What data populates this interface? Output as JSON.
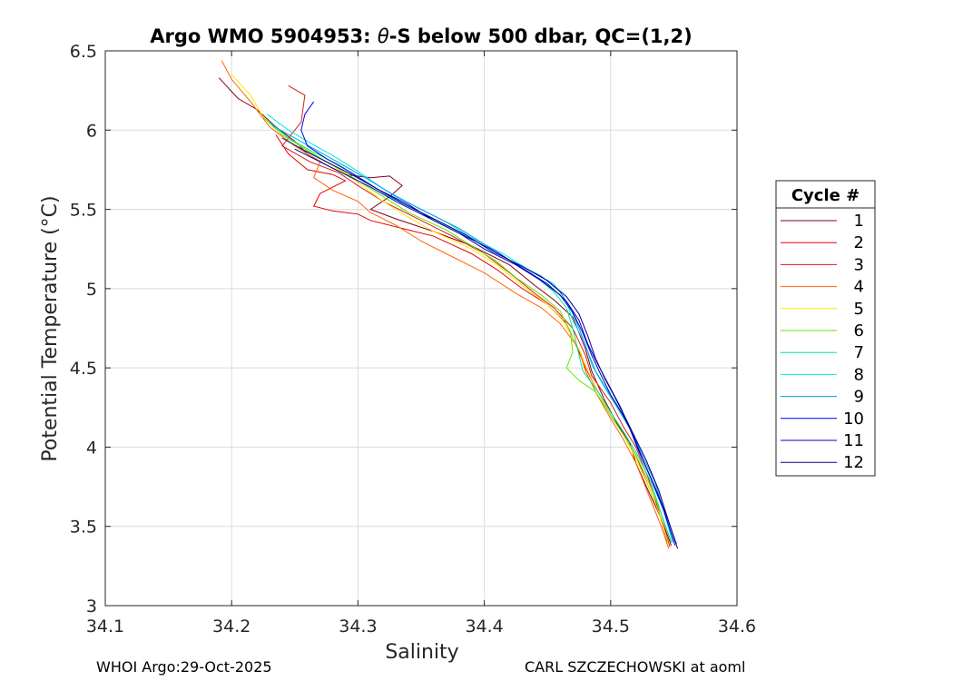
{
  "chart_data": {
    "type": "line",
    "title_prefix": "Argo WMO 5904953: ",
    "title_symbol": "θ",
    "title_suffix": "-S below 500 dbar,  QC=(1,2)",
    "xlabel": "Salinity",
    "ylabel": "Potential Temperature (°C)",
    "xlim": [
      34.1,
      34.6
    ],
    "ylim": [
      3,
      6.5
    ],
    "xticks": [
      "34.1",
      "34.2",
      "34.3",
      "34.4",
      "34.5",
      "34.6"
    ],
    "yticks": [
      "3",
      "3.5",
      "4",
      "4.5",
      "5",
      "5.5",
      "6",
      "6.5"
    ],
    "grid": true,
    "legend_title": "Cycle #",
    "legend_position": "outside-right",
    "series": [
      {
        "name": "1",
        "color": "#80001a",
        "points": [
          [
            34.19,
            6.33
          ],
          [
            34.205,
            6.2
          ],
          [
            34.22,
            6.13
          ],
          [
            34.235,
            6.02
          ],
          [
            34.25,
            5.93
          ],
          [
            34.26,
            5.85
          ],
          [
            34.275,
            5.78
          ],
          [
            34.29,
            5.72
          ],
          [
            34.31,
            5.7
          ],
          [
            34.325,
            5.71
          ],
          [
            34.335,
            5.65
          ],
          [
            34.325,
            5.58
          ],
          [
            34.31,
            5.5
          ],
          [
            34.33,
            5.44
          ],
          [
            34.36,
            5.36
          ],
          [
            34.39,
            5.27
          ],
          [
            34.42,
            5.15
          ],
          [
            34.44,
            5.02
          ],
          [
            34.455,
            4.93
          ],
          [
            34.47,
            4.82
          ],
          [
            34.48,
            4.62
          ],
          [
            34.485,
            4.48
          ],
          [
            34.495,
            4.3
          ],
          [
            34.505,
            4.15
          ],
          [
            34.515,
            4.03
          ],
          [
            34.52,
            3.9
          ],
          [
            34.53,
            3.72
          ],
          [
            34.54,
            3.55
          ],
          [
            34.548,
            3.38
          ]
        ]
      },
      {
        "name": "2",
        "color": "#e60000",
        "points": [
          [
            34.235,
            5.97
          ],
          [
            34.245,
            5.85
          ],
          [
            34.26,
            5.75
          ],
          [
            34.28,
            5.72
          ],
          [
            34.29,
            5.68
          ],
          [
            34.27,
            5.6
          ],
          [
            34.265,
            5.52
          ],
          [
            34.28,
            5.49
          ],
          [
            34.3,
            5.47
          ],
          [
            34.31,
            5.43
          ],
          [
            34.335,
            5.38
          ],
          [
            34.36,
            5.33
          ],
          [
            34.39,
            5.22
          ],
          [
            34.41,
            5.12
          ],
          [
            34.43,
            5.0
          ],
          [
            34.45,
            4.9
          ],
          [
            34.465,
            4.78
          ],
          [
            34.475,
            4.6
          ],
          [
            34.48,
            4.5
          ],
          [
            34.49,
            4.35
          ],
          [
            34.5,
            4.2
          ],
          [
            34.51,
            4.08
          ],
          [
            34.52,
            3.95
          ],
          [
            34.53,
            3.75
          ],
          [
            34.54,
            3.55
          ],
          [
            34.547,
            3.37
          ]
        ]
      },
      {
        "name": "3",
        "color": "#d21e1e",
        "points": [
          [
            34.245,
            6.28
          ],
          [
            34.258,
            6.22
          ],
          [
            34.255,
            6.05
          ],
          [
            34.24,
            5.9
          ],
          [
            34.262,
            5.8
          ],
          [
            34.285,
            5.73
          ],
          [
            34.3,
            5.65
          ],
          [
            34.32,
            5.55
          ],
          [
            34.345,
            5.45
          ],
          [
            34.375,
            5.33
          ],
          [
            34.4,
            5.22
          ],
          [
            34.42,
            5.1
          ],
          [
            34.44,
            4.97
          ],
          [
            34.455,
            4.88
          ],
          [
            34.47,
            4.75
          ],
          [
            34.48,
            4.58
          ],
          [
            34.485,
            4.45
          ],
          [
            34.5,
            4.28
          ],
          [
            34.51,
            4.13
          ],
          [
            34.52,
            4.0
          ],
          [
            34.53,
            3.8
          ],
          [
            34.538,
            3.6
          ],
          [
            34.545,
            3.4
          ]
        ]
      },
      {
        "name": "4",
        "color": "#ff6400",
        "points": [
          [
            34.192,
            6.44
          ],
          [
            34.2,
            6.32
          ],
          [
            34.215,
            6.18
          ],
          [
            34.23,
            6.02
          ],
          [
            34.25,
            5.9
          ],
          [
            34.27,
            5.8
          ],
          [
            34.265,
            5.7
          ],
          [
            34.28,
            5.62
          ],
          [
            34.3,
            5.55
          ],
          [
            34.31,
            5.48
          ],
          [
            34.33,
            5.4
          ],
          [
            34.35,
            5.3
          ],
          [
            34.37,
            5.22
          ],
          [
            34.4,
            5.1
          ],
          [
            34.425,
            4.97
          ],
          [
            34.445,
            4.88
          ],
          [
            34.46,
            4.78
          ],
          [
            34.475,
            4.62
          ],
          [
            34.48,
            4.48
          ],
          [
            34.49,
            4.32
          ],
          [
            34.5,
            4.18
          ],
          [
            34.51,
            4.05
          ],
          [
            34.52,
            3.9
          ],
          [
            34.53,
            3.7
          ],
          [
            34.54,
            3.5
          ],
          [
            34.546,
            3.36
          ]
        ]
      },
      {
        "name": "5",
        "color": "#ffe600",
        "points": [
          [
            34.2,
            6.35
          ],
          [
            34.215,
            6.22
          ],
          [
            34.225,
            6.08
          ],
          [
            34.245,
            5.95
          ],
          [
            34.265,
            5.85
          ],
          [
            34.285,
            5.75
          ],
          [
            34.3,
            5.67
          ],
          [
            34.32,
            5.55
          ],
          [
            34.34,
            5.45
          ],
          [
            34.36,
            5.36
          ],
          [
            34.39,
            5.25
          ],
          [
            34.41,
            5.15
          ],
          [
            34.43,
            5.02
          ],
          [
            34.45,
            4.9
          ],
          [
            34.462,
            4.8
          ],
          [
            34.475,
            4.62
          ],
          [
            34.482,
            4.48
          ],
          [
            34.49,
            4.35
          ],
          [
            34.5,
            4.2
          ],
          [
            34.51,
            4.08
          ],
          [
            34.52,
            3.93
          ],
          [
            34.53,
            3.75
          ],
          [
            34.54,
            3.55
          ],
          [
            34.546,
            3.38
          ]
        ]
      },
      {
        "name": "6",
        "color": "#64e600",
        "points": [
          [
            34.225,
            6.08
          ],
          [
            34.24,
            5.97
          ],
          [
            34.26,
            5.87
          ],
          [
            34.28,
            5.78
          ],
          [
            34.3,
            5.68
          ],
          [
            34.32,
            5.58
          ],
          [
            34.34,
            5.48
          ],
          [
            34.37,
            5.37
          ],
          [
            34.39,
            5.27
          ],
          [
            34.41,
            5.17
          ],
          [
            34.425,
            5.07
          ],
          [
            34.445,
            4.96
          ],
          [
            34.46,
            4.86
          ],
          [
            34.468,
            4.73
          ],
          [
            34.47,
            4.6
          ],
          [
            34.465,
            4.5
          ],
          [
            34.475,
            4.42
          ],
          [
            34.488,
            4.35
          ],
          [
            34.5,
            4.2
          ],
          [
            34.51,
            4.08
          ],
          [
            34.52,
            3.95
          ],
          [
            34.53,
            3.78
          ],
          [
            34.54,
            3.58
          ],
          [
            34.548,
            3.4
          ]
        ]
      },
      {
        "name": "7",
        "color": "#00e68c",
        "points": [
          [
            34.23,
            6.05
          ],
          [
            34.245,
            5.95
          ],
          [
            34.265,
            5.86
          ],
          [
            34.285,
            5.78
          ],
          [
            34.305,
            5.68
          ],
          [
            34.325,
            5.58
          ],
          [
            34.35,
            5.48
          ],
          [
            34.375,
            5.38
          ],
          [
            34.4,
            5.28
          ],
          [
            34.42,
            5.18
          ],
          [
            34.44,
            5.08
          ],
          [
            34.455,
            4.98
          ],
          [
            34.465,
            4.88
          ],
          [
            34.47,
            4.75
          ],
          [
            34.475,
            4.58
          ],
          [
            34.478,
            4.48
          ],
          [
            34.49,
            4.35
          ],
          [
            34.5,
            4.22
          ],
          [
            34.51,
            4.1
          ],
          [
            34.52,
            3.97
          ],
          [
            34.532,
            3.78
          ],
          [
            34.54,
            3.58
          ],
          [
            34.548,
            3.4
          ]
        ]
      },
      {
        "name": "8",
        "color": "#00e6e6",
        "points": [
          [
            34.228,
            6.1
          ],
          [
            34.245,
            6.0
          ],
          [
            34.262,
            5.92
          ],
          [
            34.28,
            5.84
          ],
          [
            34.3,
            5.74
          ],
          [
            34.32,
            5.63
          ],
          [
            34.345,
            5.52
          ],
          [
            34.37,
            5.42
          ],
          [
            34.39,
            5.32
          ],
          [
            34.415,
            5.22
          ],
          [
            34.435,
            5.12
          ],
          [
            34.455,
            5.03
          ],
          [
            34.465,
            4.92
          ],
          [
            34.47,
            4.8
          ],
          [
            34.48,
            4.65
          ],
          [
            34.485,
            4.52
          ],
          [
            34.495,
            4.38
          ],
          [
            34.505,
            4.25
          ],
          [
            34.515,
            4.12
          ],
          [
            34.522,
            3.98
          ],
          [
            34.532,
            3.8
          ],
          [
            34.542,
            3.6
          ],
          [
            34.549,
            3.4
          ]
        ]
      },
      {
        "name": "9",
        "color": "#0096e6",
        "points": [
          [
            34.232,
            6.03
          ],
          [
            34.25,
            5.95
          ],
          [
            34.268,
            5.87
          ],
          [
            34.288,
            5.78
          ],
          [
            34.31,
            5.68
          ],
          [
            34.33,
            5.58
          ],
          [
            34.355,
            5.48
          ],
          [
            34.38,
            5.38
          ],
          [
            34.4,
            5.28
          ],
          [
            34.42,
            5.18
          ],
          [
            34.445,
            5.08
          ],
          [
            34.46,
            4.98
          ],
          [
            34.468,
            4.88
          ],
          [
            34.475,
            4.75
          ],
          [
            34.482,
            4.6
          ],
          [
            34.488,
            4.48
          ],
          [
            34.498,
            4.35
          ],
          [
            34.508,
            4.22
          ],
          [
            34.518,
            4.08
          ],
          [
            34.525,
            3.95
          ],
          [
            34.535,
            3.78
          ],
          [
            34.543,
            3.58
          ],
          [
            34.55,
            3.4
          ]
        ]
      },
      {
        "name": "10",
        "color": "#0000e6",
        "points": [
          [
            34.265,
            6.18
          ],
          [
            34.258,
            6.1
          ],
          [
            34.255,
            6.0
          ],
          [
            34.26,
            5.9
          ],
          [
            34.275,
            5.82
          ],
          [
            34.295,
            5.73
          ],
          [
            34.315,
            5.63
          ],
          [
            34.34,
            5.53
          ],
          [
            34.36,
            5.43
          ],
          [
            34.385,
            5.33
          ],
          [
            34.41,
            5.23
          ],
          [
            34.43,
            5.13
          ],
          [
            34.45,
            5.03
          ],
          [
            34.465,
            4.92
          ],
          [
            34.475,
            4.8
          ],
          [
            34.482,
            4.65
          ],
          [
            34.49,
            4.52
          ],
          [
            34.498,
            4.4
          ],
          [
            34.508,
            4.25
          ],
          [
            34.515,
            4.12
          ],
          [
            34.522,
            3.98
          ],
          [
            34.532,
            3.8
          ],
          [
            34.542,
            3.6
          ],
          [
            34.551,
            3.38
          ]
        ]
      },
      {
        "name": "11",
        "color": "#0000b4",
        "points": [
          [
            34.25,
            5.88
          ],
          [
            34.27,
            5.8
          ],
          [
            34.29,
            5.72
          ],
          [
            34.31,
            5.64
          ],
          [
            34.33,
            5.55
          ],
          [
            34.355,
            5.45
          ],
          [
            34.38,
            5.35
          ],
          [
            34.4,
            5.25
          ],
          [
            34.425,
            5.15
          ],
          [
            34.445,
            5.05
          ],
          [
            34.46,
            4.96
          ],
          [
            34.47,
            4.85
          ],
          [
            34.478,
            4.72
          ],
          [
            34.485,
            4.58
          ],
          [
            34.492,
            4.46
          ],
          [
            34.5,
            4.33
          ],
          [
            34.51,
            4.2
          ],
          [
            34.518,
            4.07
          ],
          [
            34.525,
            3.93
          ],
          [
            34.535,
            3.75
          ],
          [
            34.545,
            3.55
          ],
          [
            34.552,
            3.39
          ]
        ]
      },
      {
        "name": "12",
        "color": "#000080",
        "points": [
          [
            34.24,
            5.95
          ],
          [
            34.258,
            5.87
          ],
          [
            34.275,
            5.8
          ],
          [
            34.295,
            5.72
          ],
          [
            34.315,
            5.63
          ],
          [
            34.335,
            5.54
          ],
          [
            34.36,
            5.44
          ],
          [
            34.385,
            5.34
          ],
          [
            34.405,
            5.24
          ],
          [
            34.43,
            5.14
          ],
          [
            34.45,
            5.05
          ],
          [
            34.465,
            4.95
          ],
          [
            34.475,
            4.84
          ],
          [
            34.482,
            4.7
          ],
          [
            34.488,
            4.56
          ],
          [
            34.495,
            4.44
          ],
          [
            34.503,
            4.32
          ],
          [
            34.512,
            4.18
          ],
          [
            34.52,
            4.05
          ],
          [
            34.528,
            3.92
          ],
          [
            34.538,
            3.73
          ],
          [
            34.546,
            3.53
          ],
          [
            34.553,
            3.36
          ]
        ]
      }
    ]
  },
  "footer": {
    "left": "WHOI Argo:29-Oct-2025",
    "right": "CARL SZCZECHOWSKI at aoml"
  }
}
